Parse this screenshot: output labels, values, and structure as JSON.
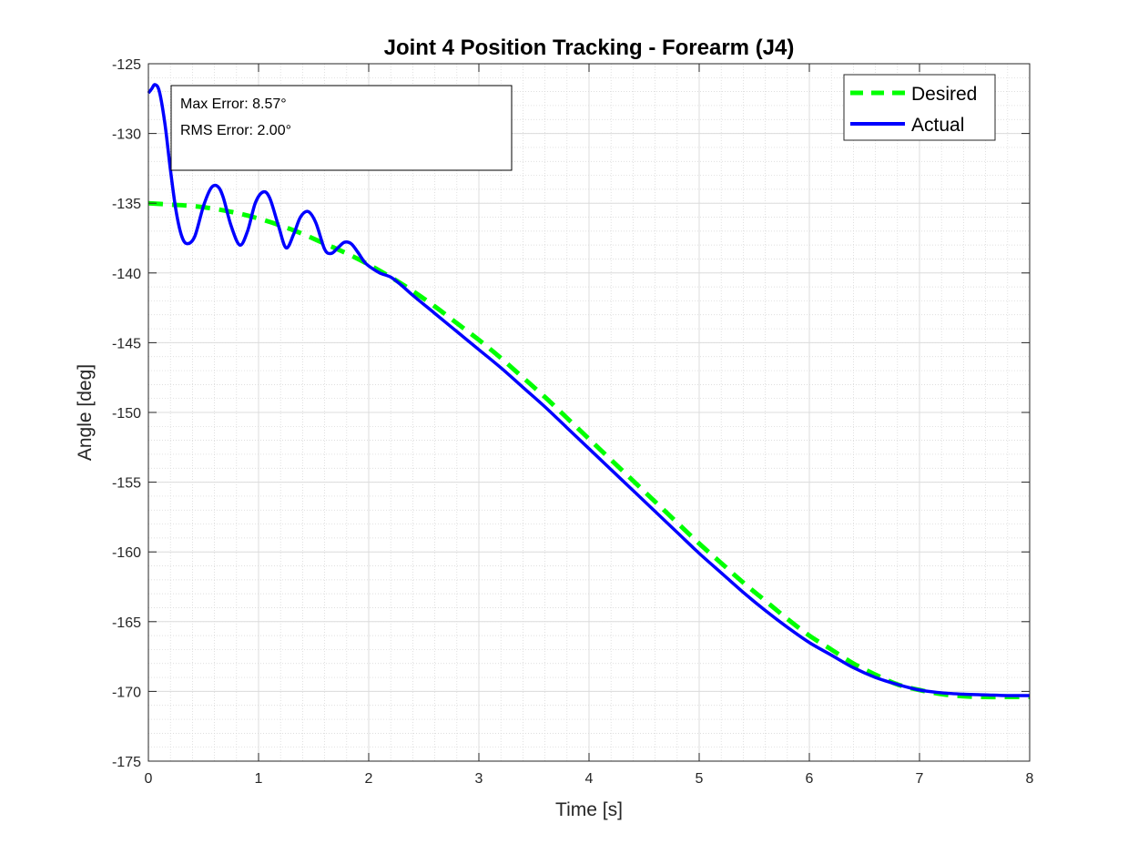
{
  "chart_data": {
    "type": "line",
    "title": "Joint 4 Position Tracking - Forearm (J4)",
    "xlabel": "Time [s]",
    "ylabel": "Angle [deg]",
    "xlim": [
      0,
      8
    ],
    "ylim": [
      -175,
      -125
    ],
    "xticks": [
      0,
      1,
      2,
      3,
      4,
      5,
      6,
      7,
      8
    ],
    "yticks": [
      -125,
      -130,
      -135,
      -140,
      -145,
      -150,
      -155,
      -160,
      -165,
      -170,
      -175
    ],
    "grid": true,
    "minor_grid": true,
    "legend_position": "top-right",
    "annotation": [
      "Max Error: 8.57°",
      "RMS Error: 2.00°"
    ],
    "series": [
      {
        "name": "Desired",
        "color": "#00ff00",
        "style": "dashed",
        "x": [
          0,
          0.2,
          0.4,
          0.6,
          0.8,
          1.0,
          1.2,
          1.4,
          1.6,
          1.8,
          2.0,
          2.2,
          2.4,
          2.6,
          2.8,
          3.0,
          3.2,
          3.4,
          3.6,
          3.8,
          4.0,
          4.2,
          4.4,
          4.6,
          4.8,
          5.0,
          5.2,
          5.4,
          5.6,
          5.8,
          6.0,
          6.2,
          6.4,
          6.6,
          6.8,
          7.0,
          7.2,
          7.4,
          7.6,
          7.8,
          8.0
        ],
        "y": [
          -135.0,
          -135.1,
          -135.2,
          -135.4,
          -135.7,
          -136.1,
          -136.6,
          -137.2,
          -137.9,
          -138.6,
          -139.4,
          -140.3,
          -141.3,
          -142.4,
          -143.6,
          -144.8,
          -146.1,
          -147.5,
          -148.9,
          -150.4,
          -151.9,
          -153.4,
          -154.9,
          -156.4,
          -157.9,
          -159.4,
          -160.8,
          -162.2,
          -163.5,
          -164.8,
          -166.0,
          -167.0,
          -168.0,
          -168.8,
          -169.5,
          -169.9,
          -170.2,
          -170.35,
          -170.4,
          -170.4,
          -170.4
        ]
      },
      {
        "name": "Actual",
        "color": "#0000ff",
        "style": "solid",
        "x": [
          0,
          0.03,
          0.06,
          0.1,
          0.15,
          0.2,
          0.25,
          0.3,
          0.35,
          0.42,
          0.5,
          0.57,
          0.63,
          0.68,
          0.75,
          0.83,
          0.9,
          0.97,
          1.04,
          1.1,
          1.18,
          1.25,
          1.32,
          1.38,
          1.45,
          1.52,
          1.6,
          1.66,
          1.72,
          1.78,
          1.84,
          1.9,
          1.96,
          2.0,
          2.1,
          2.2,
          2.3,
          2.4,
          2.6,
          2.8,
          3.0,
          3.2,
          3.4,
          3.6,
          3.8,
          4.0,
          4.2,
          4.4,
          4.6,
          4.8,
          5.0,
          5.2,
          5.4,
          5.6,
          5.8,
          6.0,
          6.2,
          6.4,
          6.6,
          6.8,
          7.0,
          7.2,
          7.4,
          7.6,
          7.8,
          8.0
        ],
        "y": [
          -127.1,
          -126.8,
          -126.5,
          -127.0,
          -129.3,
          -132.6,
          -135.5,
          -137.3,
          -137.9,
          -137.4,
          -135.2,
          -133.9,
          -133.8,
          -134.6,
          -136.6,
          -138.0,
          -137.0,
          -135.0,
          -134.2,
          -134.6,
          -136.6,
          -138.2,
          -137.2,
          -136.0,
          -135.6,
          -136.4,
          -138.3,
          -138.6,
          -138.2,
          -137.8,
          -137.9,
          -138.5,
          -139.2,
          -139.5,
          -140.0,
          -140.3,
          -140.9,
          -141.6,
          -142.9,
          -144.2,
          -145.5,
          -146.8,
          -148.2,
          -149.6,
          -151.1,
          -152.6,
          -154.1,
          -155.6,
          -157.1,
          -158.6,
          -160.1,
          -161.5,
          -162.9,
          -164.2,
          -165.4,
          -166.5,
          -167.4,
          -168.3,
          -169.0,
          -169.5,
          -169.9,
          -170.1,
          -170.2,
          -170.25,
          -170.3,
          -170.3
        ]
      }
    ]
  }
}
